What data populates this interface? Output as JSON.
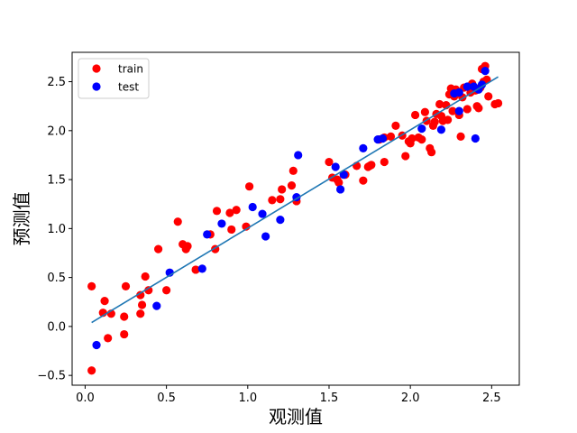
{
  "chart_data": {
    "type": "scatter",
    "title": "",
    "xlabel": "观测值",
    "ylabel": "预测值",
    "xlim": [
      -0.08,
      2.67
    ],
    "ylim": [
      -0.6,
      2.8
    ],
    "xticks": [
      "0.0",
      "0.5",
      "1.0",
      "1.5",
      "2.0",
      "2.5"
    ],
    "yticks": [
      "−0.5",
      "0.0",
      "0.5",
      "1.0",
      "1.5",
      "2.0",
      "2.5"
    ],
    "xtick_values": [
      0,
      0.5,
      1.0,
      1.5,
      2.0,
      2.5
    ],
    "ytick_values": [
      -0.5,
      0,
      0.5,
      1.0,
      1.5,
      2.0,
      2.5
    ],
    "grid": false,
    "legend_position": "top-left",
    "fit_line": {
      "color": "#1f77b4",
      "x": [
        0.04,
        2.54
      ],
      "y": [
        0.04,
        2.55
      ]
    },
    "series": [
      {
        "name": "train",
        "color": "#ff0000",
        "points": [
          [
            0.04,
            0.41
          ],
          [
            0.04,
            -0.45
          ],
          [
            0.11,
            0.14
          ],
          [
            0.12,
            0.26
          ],
          [
            0.14,
            -0.12
          ],
          [
            0.16,
            0.13
          ],
          [
            0.24,
            0.1
          ],
          [
            0.24,
            -0.08
          ],
          [
            0.25,
            0.41
          ],
          [
            0.34,
            0.13
          ],
          [
            0.35,
            0.22
          ],
          [
            0.34,
            0.32
          ],
          [
            0.37,
            0.51
          ],
          [
            0.39,
            0.37
          ],
          [
            0.45,
            0.79
          ],
          [
            0.5,
            0.37
          ],
          [
            0.57,
            1.07
          ],
          [
            0.6,
            0.84
          ],
          [
            0.62,
            0.79
          ],
          [
            0.63,
            0.82
          ],
          [
            0.68,
            0.58
          ],
          [
            0.77,
            0.94
          ],
          [
            0.8,
            0.79
          ],
          [
            0.81,
            1.18
          ],
          [
            0.89,
            1.16
          ],
          [
            0.9,
            0.99
          ],
          [
            0.93,
            1.19
          ],
          [
            0.99,
            1.02
          ],
          [
            1.01,
            1.43
          ],
          [
            1.15,
            1.29
          ],
          [
            1.2,
            1.3
          ],
          [
            1.21,
            1.4
          ],
          [
            1.27,
            1.44
          ],
          [
            1.28,
            1.59
          ],
          [
            1.3,
            1.28
          ],
          [
            1.5,
            1.68
          ],
          [
            1.52,
            1.52
          ],
          [
            1.55,
            1.5
          ],
          [
            1.56,
            1.47
          ],
          [
            1.6,
            1.55
          ],
          [
            1.67,
            1.64
          ],
          [
            1.71,
            1.49
          ],
          [
            1.74,
            1.63
          ],
          [
            1.75,
            1.64
          ],
          [
            1.76,
            1.65
          ],
          [
            1.81,
            1.91
          ],
          [
            1.84,
            1.93
          ],
          [
            1.84,
            1.68
          ],
          [
            1.88,
            1.94
          ],
          [
            1.91,
            2.05
          ],
          [
            1.95,
            1.95
          ],
          [
            1.97,
            1.74
          ],
          [
            1.99,
            1.89
          ],
          [
            2.0,
            1.87
          ],
          [
            2.01,
            1.92
          ],
          [
            2.03,
            2.16
          ],
          [
            2.05,
            1.93
          ],
          [
            2.07,
            1.91
          ],
          [
            2.09,
            2.19
          ],
          [
            2.1,
            2.1
          ],
          [
            2.12,
            1.82
          ],
          [
            2.13,
            1.78
          ],
          [
            2.14,
            2.05
          ],
          [
            2.15,
            2.09
          ],
          [
            2.16,
            2.17
          ],
          [
            2.18,
            2.27
          ],
          [
            2.19,
            2.15
          ],
          [
            2.2,
            2.1
          ],
          [
            2.22,
            2.26
          ],
          [
            2.23,
            2.11
          ],
          [
            2.24,
            2.37
          ],
          [
            2.25,
            2.43
          ],
          [
            2.26,
            2.2
          ],
          [
            2.27,
            2.35
          ],
          [
            2.28,
            2.42
          ],
          [
            2.29,
            2.38
          ],
          [
            2.3,
            2.16
          ],
          [
            2.31,
            1.94
          ],
          [
            2.32,
            2.34
          ],
          [
            2.33,
            2.44
          ],
          [
            2.35,
            2.22
          ],
          [
            2.37,
            2.39
          ],
          [
            2.38,
            2.48
          ],
          [
            2.4,
            2.41
          ],
          [
            2.41,
            2.25
          ],
          [
            2.42,
            2.23
          ],
          [
            2.43,
            2.44
          ],
          [
            2.44,
            2.63
          ],
          [
            2.45,
            2.5
          ],
          [
            2.46,
            2.66
          ],
          [
            2.47,
            2.52
          ],
          [
            2.48,
            2.35
          ],
          [
            2.52,
            2.27
          ],
          [
            2.54,
            2.28
          ]
        ]
      },
      {
        "name": "test",
        "color": "#0000ff",
        "points": [
          [
            0.07,
            -0.19
          ],
          [
            0.44,
            0.21
          ],
          [
            0.52,
            0.55
          ],
          [
            0.72,
            0.59
          ],
          [
            0.75,
            0.94
          ],
          [
            0.84,
            1.05
          ],
          [
            1.03,
            1.22
          ],
          [
            1.09,
            1.15
          ],
          [
            1.11,
            0.92
          ],
          [
            1.2,
            1.09
          ],
          [
            1.3,
            1.32
          ],
          [
            1.31,
            1.75
          ],
          [
            1.54,
            1.63
          ],
          [
            1.57,
            1.4
          ],
          [
            1.59,
            1.55
          ],
          [
            1.71,
            1.82
          ],
          [
            1.8,
            1.91
          ],
          [
            1.83,
            1.92
          ],
          [
            2.07,
            2.02
          ],
          [
            2.19,
            2.01
          ],
          [
            2.27,
            2.38
          ],
          [
            2.3,
            2.39
          ],
          [
            2.3,
            2.2
          ],
          [
            2.35,
            2.45
          ],
          [
            2.39,
            2.45
          ],
          [
            2.4,
            1.92
          ],
          [
            2.42,
            2.42
          ],
          [
            2.44,
            2.47
          ],
          [
            2.46,
            2.61
          ]
        ]
      }
    ]
  }
}
